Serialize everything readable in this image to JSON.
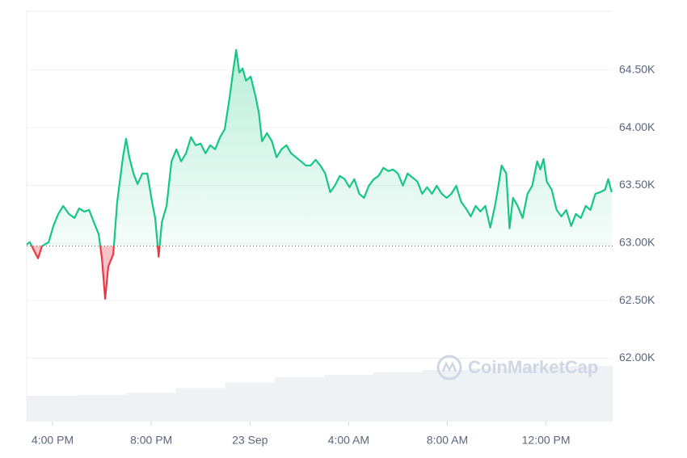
{
  "chart_data": {
    "type": "line",
    "x": [
      -1.05,
      -0.92,
      -0.79,
      -0.59,
      -0.43,
      -0.16,
      0.03,
      0.23,
      0.43,
      0.66,
      0.89,
      1.08,
      1.28,
      1.48,
      1.67,
      1.87,
      2.0,
      2.13,
      2.26,
      2.46,
      2.62,
      2.85,
      2.98,
      3.11,
      3.28,
      3.44,
      3.64,
      3.84,
      4.03,
      4.16,
      4.3,
      4.43,
      4.62,
      4.82,
      5.02,
      5.21,
      5.41,
      5.61,
      5.8,
      6.0,
      6.2,
      6.39,
      6.59,
      6.79,
      6.98,
      7.18,
      7.31,
      7.44,
      7.57,
      7.7,
      7.84,
      8.03,
      8.23,
      8.36,
      8.49,
      8.69,
      8.89,
      9.08,
      9.28,
      9.48,
      9.67,
      9.87,
      10.07,
      10.26,
      10.46,
      10.66,
      10.85,
      11.05,
      11.25,
      11.44,
      11.64,
      11.84,
      12.03,
      12.23,
      12.43,
      12.62,
      12.82,
      13.02,
      13.21,
      13.41,
      13.61,
      13.8,
      14.0,
      14.2,
      14.39,
      14.59,
      14.79,
      14.98,
      15.18,
      15.38,
      15.57,
      15.77,
      15.97,
      16.16,
      16.36,
      16.56,
      16.75,
      16.95,
      17.15,
      17.34,
      17.54,
      17.74,
      17.93,
      18.07,
      18.2,
      18.39,
      18.52,
      18.66,
      18.85,
      19.05,
      19.25,
      19.44,
      19.64,
      19.77,
      19.9,
      20.03,
      20.23,
      20.43,
      20.62,
      20.82,
      21.02,
      21.21,
      21.41,
      21.61,
      21.8,
      22.0,
      22.2,
      22.39,
      22.52,
      22.66
    ],
    "values": [
      62986,
      63007,
      62951,
      62867,
      62972,
      63007,
      63147,
      63252,
      63322,
      63252,
      63217,
      63301,
      63273,
      63287,
      63182,
      63077,
      62867,
      62516,
      62797,
      62902,
      63357,
      63743,
      63904,
      63743,
      63603,
      63512,
      63603,
      63603,
      63357,
      63217,
      62881,
      63182,
      63322,
      63708,
      63813,
      63708,
      63778,
      63918,
      63848,
      63862,
      63778,
      63848,
      63813,
      63918,
      63988,
      64268,
      64479,
      64675,
      64479,
      64514,
      64409,
      64444,
      64268,
      64128,
      63883,
      63953,
      63883,
      63743,
      63813,
      63848,
      63778,
      63743,
      63708,
      63673,
      63673,
      63722,
      63673,
      63603,
      63441,
      63497,
      63582,
      63554,
      63484,
      63554,
      63427,
      63392,
      63497,
      63554,
      63582,
      63652,
      63624,
      63638,
      63603,
      63497,
      63603,
      63568,
      63533,
      63427,
      63484,
      63427,
      63497,
      63427,
      63392,
      63427,
      63497,
      63357,
      63301,
      63231,
      63322,
      63273,
      63322,
      63133,
      63322,
      63497,
      63673,
      63603,
      63126,
      63392,
      63322,
      63217,
      63427,
      63497,
      63708,
      63638,
      63729,
      63533,
      63462,
      63287,
      63231,
      63287,
      63147,
      63252,
      63217,
      63322,
      63287,
      63427,
      63441,
      63462,
      63554,
      63441
    ],
    "baseline": 62975,
    "up_color": "#16c784",
    "down_color": "#ea3943",
    "xlim": [
      -1.05,
      22.7
    ],
    "xticks": [
      {
        "value": 0,
        "label": "4:00 PM"
      },
      {
        "value": 4,
        "label": "8:00 PM"
      },
      {
        "value": 8,
        "label": "23 Sep"
      },
      {
        "value": 12,
        "label": "4:00 AM"
      },
      {
        "value": 16,
        "label": "8:00 AM"
      },
      {
        "value": 20,
        "label": "12:00 PM"
      }
    ],
    "ylim": [
      61450,
      65010
    ],
    "yticks": [
      {
        "value": 62000,
        "label": "62.00K"
      },
      {
        "value": 62500,
        "label": "62.50K"
      },
      {
        "value": 63000,
        "label": "63.00K"
      },
      {
        "value": 63500,
        "label": "63.50K"
      },
      {
        "value": 64000,
        "label": "64.00K"
      },
      {
        "value": 64500,
        "label": "64.50K"
      }
    ],
    "grid": true,
    "volume": {
      "color": "#eff2f5",
      "x": [
        -1.05,
        1,
        3,
        5,
        7,
        9,
        11,
        13,
        15,
        17,
        19,
        21,
        22.7
      ],
      "values": [
        6.3,
        6.5,
        7.0,
        8.2,
        9.6,
        10.8,
        11.4,
        12.0,
        12.6,
        13.0,
        13.4,
        13.6,
        13.8
      ]
    },
    "y2lim": [
      0,
      100
    ],
    "watermark": "CoinMarketCap"
  }
}
